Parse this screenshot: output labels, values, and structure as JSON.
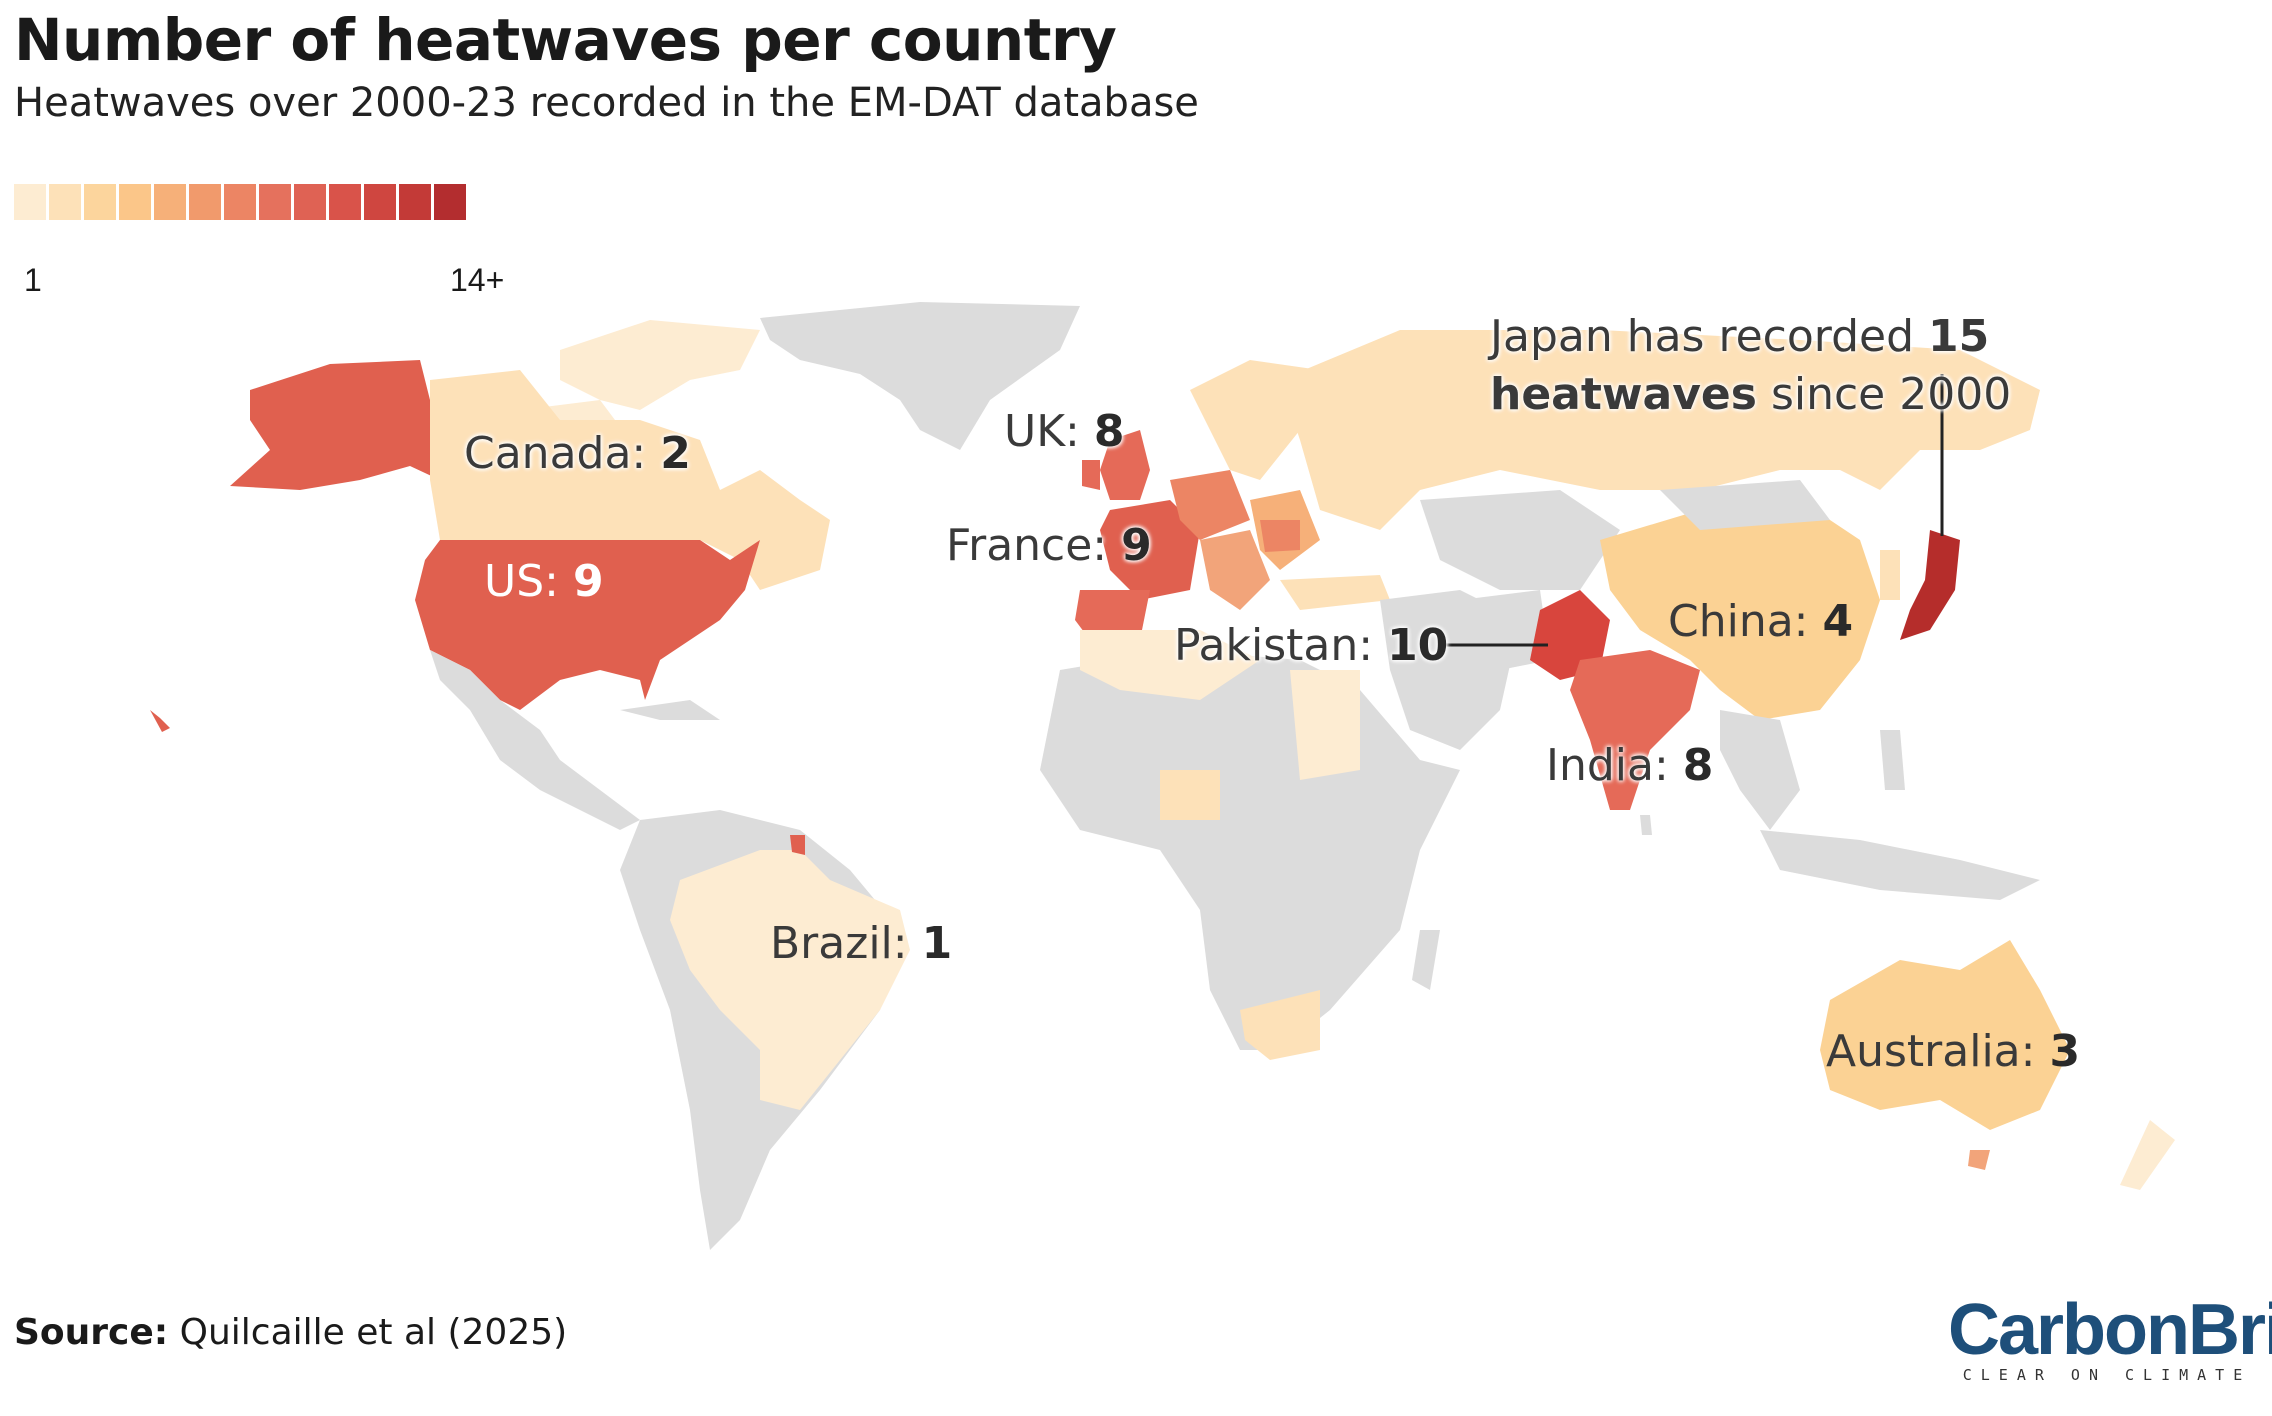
{
  "title": "Number of heatwaves per country",
  "subtitle": "Heatwaves over 2000-23 recorded in the EM-DAT database",
  "legend": {
    "min_label": "1",
    "max_label": "14+",
    "colors": [
      "#fdecd2",
      "#fde1b8",
      "#fcd59d",
      "#fbc689",
      "#f6b079",
      "#f19a6c",
      "#ec8564",
      "#e5715d",
      "#df6254",
      "#d9534a",
      "#cf4640",
      "#c33a37",
      "#b32d2f"
    ]
  },
  "colors": {
    "no_data": "#dcdcdc",
    "c1": "#fdecd2",
    "c2": "#fde1b8",
    "c3": "#fbd294",
    "c4": "#fac883",
    "c5": "#f2a47a",
    "c8": "#e56a58",
    "c9": "#e0604f",
    "c10": "#d8453d",
    "c15": "#b52d2b"
  },
  "labels": {
    "canada": {
      "name": "Canada: ",
      "value": "2"
    },
    "us": {
      "name": "US: ",
      "value": "9"
    },
    "uk": {
      "name": "UK: ",
      "value": "8"
    },
    "france": {
      "name": "France: ",
      "value": "9"
    },
    "pakistan": {
      "name": "Pakistan: ",
      "value": "10"
    },
    "china": {
      "name": "China: ",
      "value": "4"
    },
    "india": {
      "name": "India: ",
      "value": "8"
    },
    "brazil": {
      "name": "Brazil: ",
      "value": "1"
    },
    "australia": {
      "name": "Australia: ",
      "value": "3"
    }
  },
  "callout": {
    "line1_a": "Japan has recorded ",
    "line1_b": "15",
    "line2_a": "heatwaves",
    "line2_b": " since 2000"
  },
  "source": {
    "label": "Source:",
    "text": " Quilcaille et al (2025)"
  },
  "brand": {
    "name": "CarbonBrief",
    "tagline": "CLEAR ON CLIMATE"
  }
}
